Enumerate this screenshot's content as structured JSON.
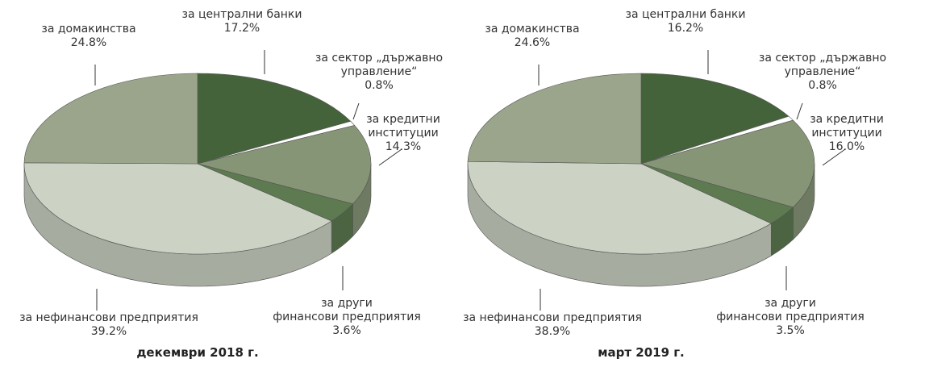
{
  "chart_data": [
    {
      "type": "pie3d",
      "title": "декември 2018 г.",
      "categories": [
        "за централни банки",
        "за сектор „държавно\nуправление“",
        "за кредитни\nинституции",
        "за други\nфинансови предприятия",
        "за нефинансови предприятия",
        "за домакинства"
      ],
      "values": [
        17.2,
        0.8,
        14.3,
        3.6,
        39.2,
        24.8
      ],
      "value_labels": [
        "17.2%",
        "0.8%",
        "14.3%",
        "3.6%",
        "39.2%",
        "24.8%"
      ],
      "colors": [
        "#45633a",
        "#ffffff",
        "#879577",
        "#5d7a50",
        "#ccd2c4",
        "#9ba58b"
      ]
    },
    {
      "type": "pie3d",
      "title": "март 2019 г.",
      "categories": [
        "за централни банки",
        "за сектор „държавно\nуправление“",
        "за кредитни\nинституции",
        "за други\nфинансови предприятия",
        "за нефинансови предприятия",
        "за домакинства"
      ],
      "values": [
        16.2,
        0.8,
        16.0,
        3.5,
        38.9,
        24.6
      ],
      "value_labels": [
        "16.2%",
        "0.8%",
        "16.0%",
        "3.5%",
        "38.9%",
        "24.6%"
      ],
      "colors": [
        "#45633a",
        "#ffffff",
        "#879577",
        "#5d7a50",
        "#ccd2c4",
        "#9ba58b"
      ]
    }
  ]
}
